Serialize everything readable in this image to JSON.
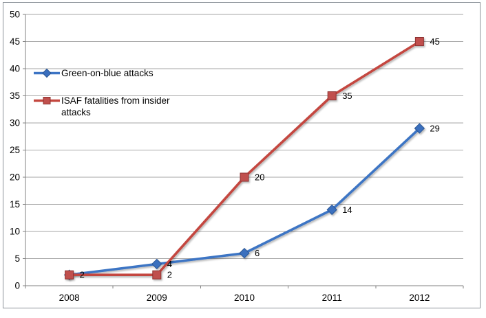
{
  "chart_data": {
    "type": "line",
    "title": "",
    "xlabel": "",
    "ylabel": "",
    "categories": [
      "2008",
      "2009",
      "2010",
      "2011",
      "2012"
    ],
    "series": [
      {
        "name": "Green-on-blue attacks",
        "values": [
          2,
          4,
          6,
          14,
          29
        ],
        "data_labels": [
          "",
          "4",
          "6",
          "14",
          "29"
        ],
        "color": "#3c74c4",
        "marker": "diamond",
        "marker_fill": "#3a6fbe",
        "marker_border": "#2b5795"
      },
      {
        "name": "ISAF fatalities from insider attacks",
        "values": [
          2,
          2,
          20,
          35,
          45
        ],
        "data_labels": [
          "2",
          "2",
          "20",
          "35",
          "45"
        ],
        "color": "#c4473f",
        "marker": "square",
        "marker_fill": "#c0504d",
        "marker_border": "#8e3330"
      }
    ],
    "ylim": [
      0,
      50
    ],
    "ytick_step": 5,
    "ytick_labels": [
      "0",
      "5",
      "10",
      "15",
      "20",
      "25",
      "30",
      "35",
      "40",
      "45",
      "50"
    ],
    "grid": true,
    "legend_position": "inside-top-left"
  },
  "legend": {
    "items": [
      {
        "label": "Green-on-blue attacks"
      },
      {
        "label": "ISAF fatalities from insider attacks"
      }
    ]
  },
  "colors": {
    "background": "#ffffff",
    "plot_border": "#8a9097",
    "gridline": "#a6a6a6",
    "axis": "#808080",
    "text": "#000000"
  }
}
